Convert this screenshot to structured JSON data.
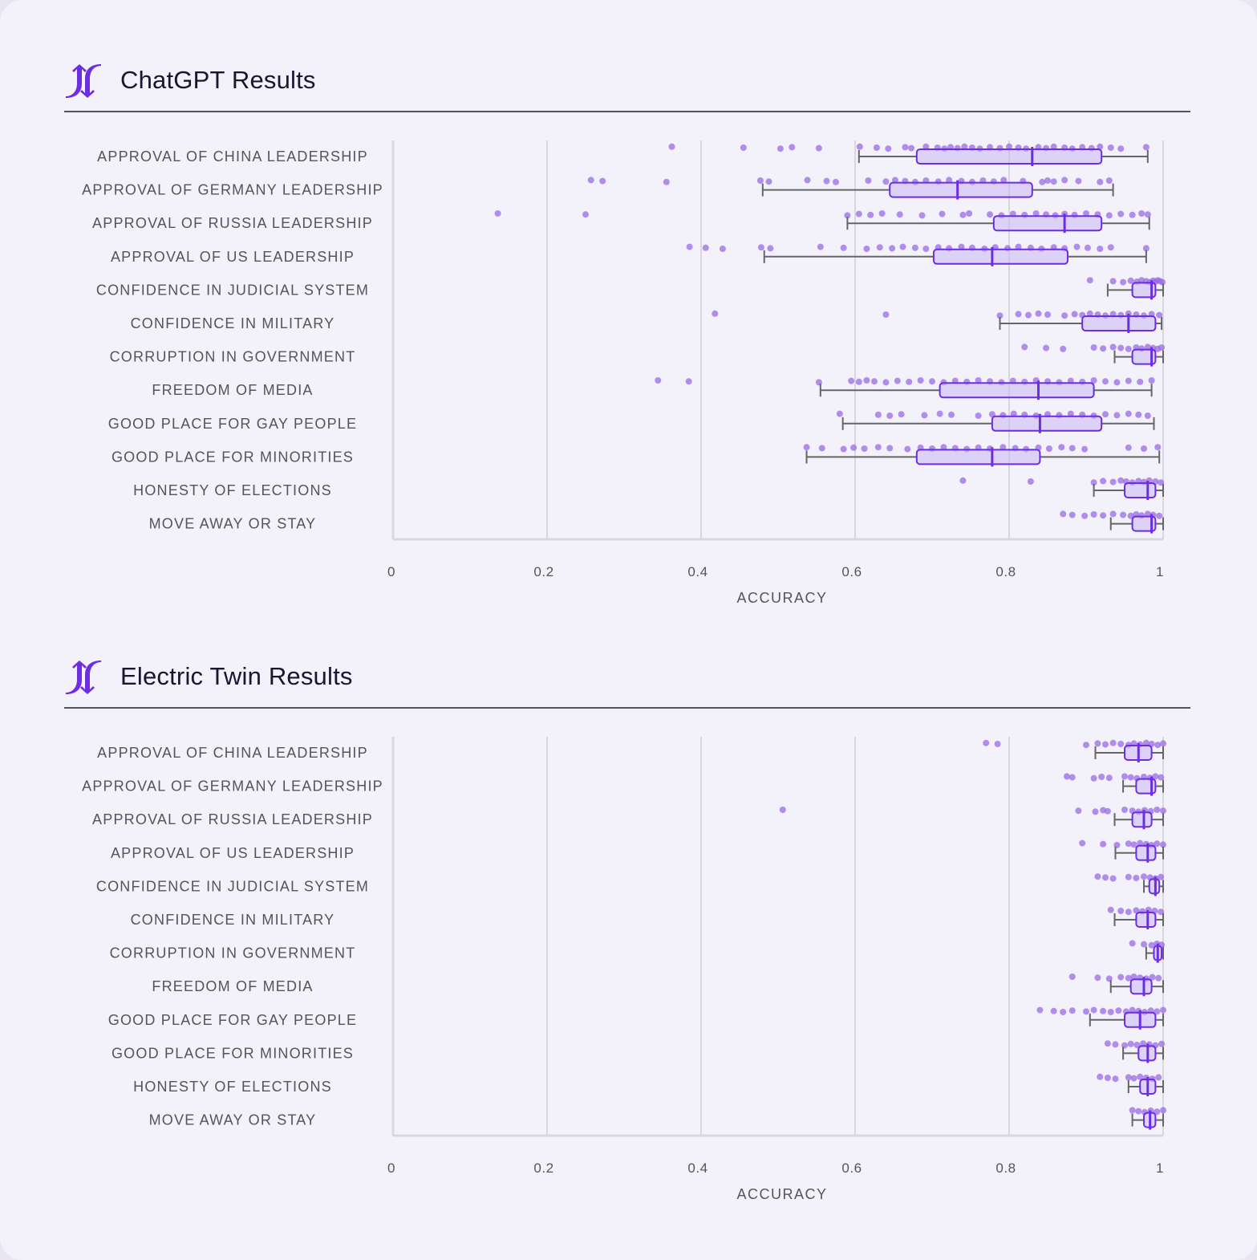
{
  "colors": {
    "accent": "#6c2ee0",
    "box_fill": "#c9b7f4",
    "dot": "#9a6ae6",
    "whisker": "#666666",
    "grid": "#d8d6de"
  },
  "logo_icon": "jf-arrows-logo-icon",
  "chart_data": [
    {
      "type": "box",
      "title": "ChatGPT Results",
      "xlabel": "ACCURACY",
      "xlim": [
        0,
        1
      ],
      "xticks": [
        "0",
        "0.2",
        "0.4",
        "0.6",
        "0.8",
        "1"
      ],
      "grid": true,
      "categories": [
        {
          "label": "APPROVAL OF CHINA LEADERSHIP",
          "whisker_low": 0.605,
          "q1": 0.68,
          "median": 0.83,
          "q3": 0.92,
          "whisker_high": 0.98,
          "points": [
            0.362,
            0.455,
            0.503,
            0.518,
            0.553,
            0.606,
            0.628,
            0.643,
            0.665,
            0.673,
            0.692,
            0.707,
            0.716,
            0.724,
            0.733,
            0.742,
            0.752,
            0.762,
            0.775,
            0.788,
            0.8,
            0.812,
            0.822,
            0.838,
            0.848,
            0.858,
            0.872,
            0.882,
            0.895,
            0.907,
            0.918,
            0.932,
            0.945,
            0.978
          ]
        },
        {
          "label": "APPROVAL OF GERMANY LEADERSHIP",
          "whisker_low": 0.48,
          "q1": 0.645,
          "median": 0.733,
          "q3": 0.83,
          "whisker_high": 0.935,
          "points": [
            0.257,
            0.272,
            0.355,
            0.477,
            0.488,
            0.538,
            0.563,
            0.575,
            0.617,
            0.64,
            0.652,
            0.665,
            0.678,
            0.692,
            0.708,
            0.722,
            0.738,
            0.752,
            0.766,
            0.78,
            0.793,
            0.818,
            0.843,
            0.85,
            0.858,
            0.872,
            0.89,
            0.918,
            0.93
          ]
        },
        {
          "label": "APPROVAL OF RUSSIA LEADERSHIP",
          "whisker_low": 0.59,
          "q1": 0.78,
          "median": 0.872,
          "q3": 0.92,
          "whisker_high": 0.982,
          "points": [
            0.136,
            0.25,
            0.59,
            0.605,
            0.62,
            0.635,
            0.658,
            0.687,
            0.713,
            0.74,
            0.748,
            0.775,
            0.79,
            0.805,
            0.82,
            0.835,
            0.848,
            0.86,
            0.872,
            0.885,
            0.9,
            0.915,
            0.93,
            0.945,
            0.96,
            0.972,
            0.98
          ]
        },
        {
          "label": "APPROVAL OF US LEADERSHIP",
          "whisker_low": 0.482,
          "q1": 0.702,
          "median": 0.778,
          "q3": 0.876,
          "whisker_high": 0.978,
          "points": [
            0.385,
            0.406,
            0.428,
            0.478,
            0.49,
            0.555,
            0.585,
            0.615,
            0.632,
            0.648,
            0.662,
            0.678,
            0.692,
            0.708,
            0.722,
            0.738,
            0.752,
            0.768,
            0.782,
            0.798,
            0.812,
            0.828,
            0.842,
            0.858,
            0.872,
            0.888,
            0.902,
            0.918,
            0.932,
            0.978
          ]
        },
        {
          "label": "CONFIDENCE IN JUDICIAL SYSTEM",
          "whisker_low": 0.928,
          "q1": 0.96,
          "median": 0.985,
          "q3": 0.99,
          "whisker_high": 1.0,
          "points": [
            0.905,
            0.935,
            0.948,
            0.958,
            0.966,
            0.972,
            0.978,
            0.983,
            0.987,
            0.99,
            0.993,
            0.996,
            0.999
          ]
        },
        {
          "label": "CONFIDENCE IN MILITARY",
          "whisker_low": 0.788,
          "q1": 0.895,
          "median": 0.955,
          "q3": 0.99,
          "whisker_high": 0.998,
          "points": [
            0.418,
            0.64,
            0.788,
            0.812,
            0.825,
            0.838,
            0.85,
            0.872,
            0.885,
            0.895,
            0.905,
            0.915,
            0.925,
            0.935,
            0.945,
            0.955,
            0.965,
            0.975,
            0.985,
            0.995
          ]
        },
        {
          "label": "CORRUPTION IN GOVERNMENT",
          "whisker_low": 0.937,
          "q1": 0.96,
          "median": 0.985,
          "q3": 0.99,
          "whisker_high": 1.0,
          "points": [
            0.82,
            0.848,
            0.87,
            0.91,
            0.922,
            0.935,
            0.945,
            0.955,
            0.965,
            0.972,
            0.98,
            0.987,
            0.993,
            0.998
          ]
        },
        {
          "label": "FREEDOM OF MEDIA",
          "whisker_low": 0.555,
          "q1": 0.71,
          "median": 0.838,
          "q3": 0.91,
          "whisker_high": 0.985,
          "points": [
            0.344,
            0.384,
            0.553,
            0.595,
            0.605,
            0.615,
            0.625,
            0.64,
            0.655,
            0.67,
            0.685,
            0.7,
            0.715,
            0.73,
            0.745,
            0.76,
            0.775,
            0.79,
            0.805,
            0.82,
            0.835,
            0.85,
            0.865,
            0.88,
            0.895,
            0.91,
            0.925,
            0.94,
            0.955,
            0.97,
            0.985
          ]
        },
        {
          "label": "GOOD PLACE FOR GAY PEOPLE",
          "whisker_low": 0.584,
          "q1": 0.778,
          "median": 0.84,
          "q3": 0.92,
          "whisker_high": 0.988,
          "points": [
            0.58,
            0.63,
            0.645,
            0.66,
            0.69,
            0.71,
            0.725,
            0.76,
            0.778,
            0.792,
            0.806,
            0.82,
            0.835,
            0.85,
            0.865,
            0.88,
            0.895,
            0.91,
            0.925,
            0.94,
            0.955,
            0.968,
            0.98
          ]
        },
        {
          "label": "GOOD PLACE FOR MINORITIES",
          "whisker_low": 0.537,
          "q1": 0.68,
          "median": 0.778,
          "q3": 0.84,
          "whisker_high": 0.995,
          "points": [
            0.537,
            0.557,
            0.585,
            0.598,
            0.612,
            0.63,
            0.645,
            0.668,
            0.685,
            0.7,
            0.715,
            0.73,
            0.745,
            0.76,
            0.775,
            0.792,
            0.808,
            0.822,
            0.838,
            0.852,
            0.868,
            0.882,
            0.898,
            0.955,
            0.975,
            0.993
          ]
        },
        {
          "label": "HONESTY OF ELECTIONS",
          "whisker_low": 0.91,
          "q1": 0.95,
          "median": 0.98,
          "q3": 0.99,
          "whisker_high": 1.0,
          "points": [
            0.74,
            0.828,
            0.91,
            0.922,
            0.935,
            0.945,
            0.952,
            0.96,
            0.968,
            0.975,
            0.982,
            0.99,
            0.997
          ]
        },
        {
          "label": "MOVE AWAY OR STAY",
          "whisker_low": 0.932,
          "q1": 0.96,
          "median": 0.985,
          "q3": 0.99,
          "whisker_high": 1.0,
          "points": [
            0.87,
            0.882,
            0.898,
            0.91,
            0.922,
            0.935,
            0.948,
            0.958,
            0.965,
            0.972,
            0.98,
            0.987,
            0.995
          ]
        }
      ]
    },
    {
      "type": "box",
      "title": "Electric Twin Results",
      "xlabel": "ACCURACY",
      "xlim": [
        0,
        1
      ],
      "xticks": [
        "0",
        "0.2",
        "0.4",
        "0.6",
        "0.8",
        "1"
      ],
      "grid": true,
      "categories": [
        {
          "label": "APPROVAL OF CHINA LEADERSHIP",
          "whisker_low": 0.912,
          "q1": 0.95,
          "median": 0.968,
          "q3": 0.985,
          "whisker_high": 1.0,
          "points": [
            0.77,
            0.785,
            0.9,
            0.915,
            0.925,
            0.935,
            0.945,
            0.955,
            0.962,
            0.97,
            0.978,
            0.985,
            0.993,
            1.0
          ]
        },
        {
          "label": "APPROVAL OF GERMANY LEADERSHIP",
          "whisker_low": 0.948,
          "q1": 0.965,
          "median": 0.985,
          "q3": 0.99,
          "whisker_high": 1.0,
          "points": [
            0.875,
            0.882,
            0.91,
            0.92,
            0.93,
            0.95,
            0.958,
            0.966,
            0.975,
            0.983,
            0.99,
            0.997
          ]
        },
        {
          "label": "APPROVAL OF RUSSIA LEADERSHIP",
          "whisker_low": 0.937,
          "q1": 0.96,
          "median": 0.975,
          "q3": 0.985,
          "whisker_high": 1.0,
          "points": [
            0.506,
            0.89,
            0.912,
            0.922,
            0.928,
            0.95,
            0.96,
            0.968,
            0.976,
            0.984,
            0.992,
            1.0
          ]
        },
        {
          "label": "APPROVAL OF US LEADERSHIP",
          "whisker_low": 0.938,
          "q1": 0.965,
          "median": 0.98,
          "q3": 0.99,
          "whisker_high": 1.0,
          "points": [
            0.895,
            0.922,
            0.94,
            0.955,
            0.962,
            0.97,
            0.978,
            0.985,
            0.992,
            1.0
          ]
        },
        {
          "label": "CONFIDENCE IN JUDICIAL SYSTEM",
          "whisker_low": 0.975,
          "q1": 0.982,
          "median": 0.99,
          "q3": 0.995,
          "whisker_high": 1.0,
          "points": [
            0.915,
            0.925,
            0.935,
            0.955,
            0.965,
            0.975,
            0.983,
            0.99,
            0.997
          ]
        },
        {
          "label": "CONFIDENCE IN MILITARY",
          "whisker_low": 0.937,
          "q1": 0.965,
          "median": 0.98,
          "q3": 0.99,
          "whisker_high": 1.0,
          "points": [
            0.932,
            0.945,
            0.955,
            0.965,
            0.973,
            0.981,
            0.989,
            0.997
          ]
        },
        {
          "label": "CORRUPTION IN GOVERNMENT",
          "whisker_low": 0.978,
          "q1": 0.988,
          "median": 0.993,
          "q3": 0.998,
          "whisker_high": 1.0,
          "points": [
            0.96,
            0.975,
            0.985,
            0.992,
            0.998
          ]
        },
        {
          "label": "FREEDOM OF MEDIA",
          "whisker_low": 0.932,
          "q1": 0.958,
          "median": 0.975,
          "q3": 0.985,
          "whisker_high": 1.0,
          "points": [
            0.882,
            0.915,
            0.93,
            0.945,
            0.955,
            0.962,
            0.97,
            0.978,
            0.986,
            0.994
          ]
        },
        {
          "label": "GOOD PLACE FOR GAY PEOPLE",
          "whisker_low": 0.905,
          "q1": 0.95,
          "median": 0.97,
          "q3": 0.99,
          "whisker_high": 1.0,
          "points": [
            0.84,
            0.858,
            0.87,
            0.882,
            0.9,
            0.91,
            0.922,
            0.932,
            0.942,
            0.952,
            0.96,
            0.968,
            0.976,
            0.984,
            0.992,
            1.0
          ]
        },
        {
          "label": "GOOD PLACE FOR MINORITIES",
          "whisker_low": 0.948,
          "q1": 0.968,
          "median": 0.98,
          "q3": 0.99,
          "whisker_high": 1.0,
          "points": [
            0.928,
            0.938,
            0.95,
            0.958,
            0.966,
            0.974,
            0.982,
            0.99,
            0.998
          ]
        },
        {
          "label": "HONESTY OF ELECTIONS",
          "whisker_low": 0.955,
          "q1": 0.97,
          "median": 0.98,
          "q3": 0.99,
          "whisker_high": 1.0,
          "points": [
            0.918,
            0.928,
            0.938,
            0.955,
            0.962,
            0.97,
            0.978,
            0.986,
            0.994
          ]
        },
        {
          "label": "MOVE AWAY OR STAY",
          "whisker_low": 0.96,
          "q1": 0.975,
          "median": 0.983,
          "q3": 0.99,
          "whisker_high": 1.0,
          "points": [
            0.96,
            0.968,
            0.976,
            0.984,
            0.992,
            1.0
          ]
        }
      ]
    }
  ]
}
